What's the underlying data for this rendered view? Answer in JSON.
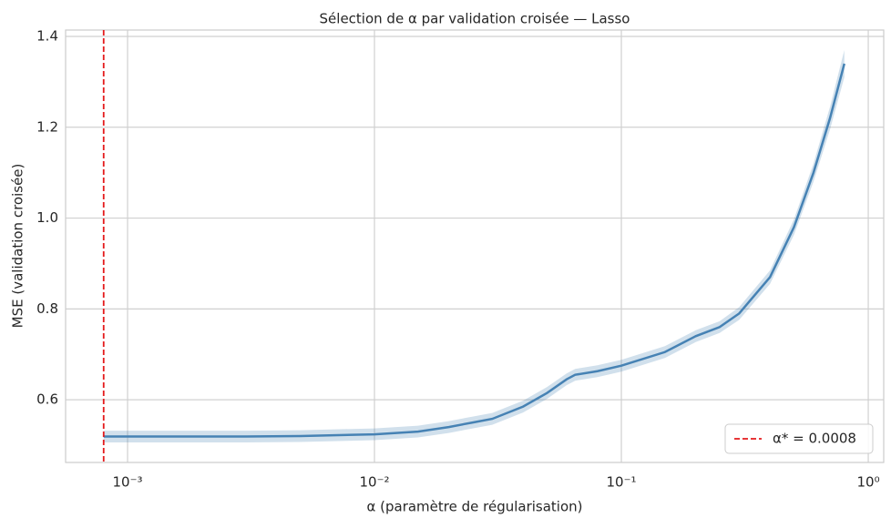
{
  "chart_data": {
    "type": "line",
    "title": "Sélection de α par validation croisée — Lasso",
    "x_label": "α (paramètre de régularisation)",
    "y_label": "MSE (validation croisée)",
    "x_scale": "log",
    "grid": true,
    "legend_position": "lower right",
    "x": [
      0.0008,
      0.001,
      0.003,
      0.005,
      0.01,
      0.015,
      0.02,
      0.025,
      0.03,
      0.04,
      0.05,
      0.06,
      0.065,
      0.08,
      0.1,
      0.15,
      0.2,
      0.25,
      0.3,
      0.4,
      0.5,
      0.6,
      0.7,
      0.8
    ],
    "series": [
      {
        "color": "#4682b4",
        "values": [
          0.519,
          0.519,
          0.519,
          0.52,
          0.524,
          0.53,
          0.54,
          0.55,
          0.558,
          0.585,
          0.615,
          0.645,
          0.655,
          0.663,
          0.675,
          0.705,
          0.74,
          0.76,
          0.79,
          0.87,
          0.98,
          1.1,
          1.22,
          1.34
        ],
        "lower": [
          0.506,
          0.506,
          0.506,
          0.507,
          0.511,
          0.517,
          0.527,
          0.537,
          0.545,
          0.572,
          0.602,
          0.632,
          0.642,
          0.65,
          0.662,
          0.692,
          0.727,
          0.747,
          0.776,
          0.855,
          0.963,
          1.08,
          1.195,
          1.31
        ],
        "upper": [
          0.532,
          0.532,
          0.532,
          0.533,
          0.537,
          0.543,
          0.553,
          0.563,
          0.571,
          0.598,
          0.628,
          0.658,
          0.668,
          0.676,
          0.688,
          0.718,
          0.753,
          0.773,
          0.804,
          0.885,
          0.997,
          1.12,
          1.245,
          1.37
        ]
      }
    ],
    "vline": {
      "x": 0.0008,
      "label": "α* = 0.0008",
      "color": "#e41a1c"
    },
    "xlim": [
      0.000561,
      1.155
    ],
    "ylim": [
      0.462,
      1.414
    ],
    "xticks": [
      {
        "value": 0.001,
        "label": "10⁻³"
      },
      {
        "value": 0.01,
        "label": "10⁻²"
      },
      {
        "value": 0.1,
        "label": "10⁻¹"
      },
      {
        "value": 1,
        "label": "10⁰"
      }
    ],
    "yticks": [
      0.6,
      0.8,
      {
        "value": 1,
        "label": "1.0"
      },
      1.2,
      1.4
    ]
  }
}
